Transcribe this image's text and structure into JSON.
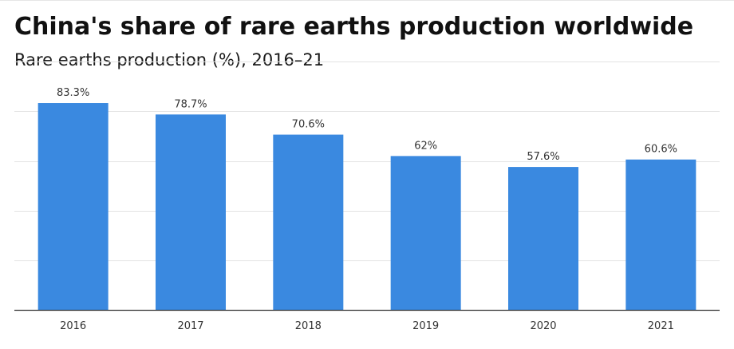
{
  "chart_data": {
    "type": "bar",
    "title": "China's share of rare earths production worldwide",
    "subtitle": "Rare earths production (%), 2016–21",
    "xlabel": "",
    "ylabel": "",
    "categories": [
      "2016",
      "2017",
      "2018",
      "2019",
      "2020",
      "2021"
    ],
    "values": [
      83.3,
      78.7,
      70.6,
      62,
      57.6,
      60.6
    ],
    "data_labels": [
      "83.3%",
      "78.7%",
      "70.6%",
      "62%",
      "57.6%",
      "60.6%"
    ],
    "ylim": [
      0,
      100
    ],
    "gridlines": [
      20,
      40,
      60,
      80,
      100
    ],
    "grid": true,
    "show_y_tick_labels": false,
    "legend": "none",
    "colors": {
      "bar": "#3a89e0",
      "grid": "#e3e3e3",
      "baseline": "#333333",
      "text": "#1a1a1a"
    }
  }
}
